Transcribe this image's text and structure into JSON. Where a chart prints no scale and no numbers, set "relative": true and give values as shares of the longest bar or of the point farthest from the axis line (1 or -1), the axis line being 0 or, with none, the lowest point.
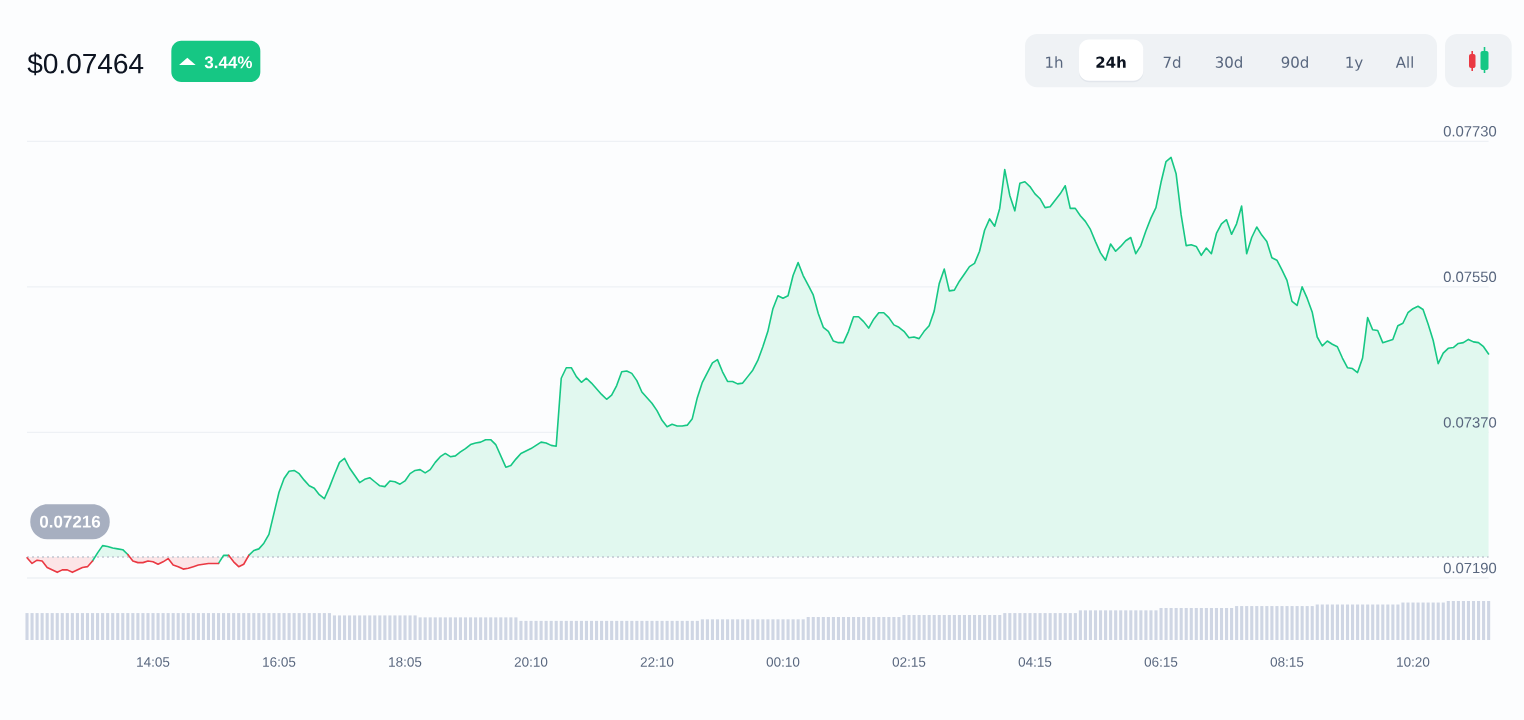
{
  "chart_data": [
    {
      "type": "area",
      "title": "$0.07464",
      "annotations": [
        "3.44%",
        "1h",
        "24h",
        "7d",
        "30d",
        "90d",
        "1y",
        "All"
      ],
      "categories": [
        null,
        null,
        null,
        null,
        null,
        null,
        null,
        null,
        null,
        null,
        null,
        null,
        null,
        null,
        null,
        null,
        null,
        null,
        null,
        null,
        null,
        null,
        null,
        null,
        null,
        "14:05",
        null,
        null,
        null,
        null,
        null,
        null,
        null,
        null,
        null,
        null,
        null,
        null,
        null,
        null,
        null,
        null,
        null,
        null,
        null,
        null,
        null,
        null,
        null,
        null,
        "16:05",
        null,
        null,
        null,
        null,
        null,
        null,
        null,
        null,
        null,
        null,
        null,
        null,
        null,
        null,
        null,
        null,
        null,
        null,
        null,
        null,
        null,
        null,
        null,
        null,
        "18:05",
        null,
        null,
        null,
        null,
        null,
        null,
        null,
        null,
        null,
        null,
        null,
        null,
        null,
        null,
        null,
        null,
        null,
        null,
        null,
        null,
        null,
        null,
        null,
        null,
        "20:10",
        null,
        null,
        null,
        null,
        null,
        null,
        null,
        null,
        null,
        null,
        null,
        null,
        null,
        null,
        null,
        null,
        null,
        null,
        null,
        null,
        null,
        null,
        null,
        null,
        "22:10",
        null,
        null,
        null,
        null,
        null,
        null,
        null,
        null,
        null,
        null,
        null,
        null,
        null,
        null,
        null,
        null,
        null,
        null,
        null,
        null,
        null,
        null,
        null,
        null,
        "00:10",
        null,
        null,
        null,
        null,
        null,
        null,
        null,
        null,
        null,
        null,
        null,
        null,
        null,
        null,
        null,
        null,
        null,
        null,
        null,
        null,
        null,
        null,
        null,
        null,
        "02:15",
        null,
        null,
        null,
        null,
        null,
        null,
        null,
        null,
        null,
        null,
        null,
        null,
        null,
        null,
        null,
        null,
        null,
        null,
        null,
        null,
        null,
        null,
        null,
        null,
        "04:15",
        null,
        null,
        null,
        null,
        null,
        null,
        null,
        null,
        null,
        null,
        null,
        null,
        null,
        null,
        null,
        null,
        null,
        null,
        null,
        null,
        null,
        null,
        null,
        null,
        "06:15",
        null,
        null,
        null,
        null,
        null,
        null,
        null,
        null,
        null,
        null,
        null,
        null,
        null,
        null,
        null,
        null,
        null,
        null,
        null,
        null,
        null,
        null,
        null,
        null,
        "08:15",
        null,
        null,
        null,
        null,
        null,
        null,
        null,
        null,
        null,
        null,
        null,
        null,
        null,
        null,
        null,
        null,
        null,
        null,
        null,
        null,
        null,
        null,
        null,
        null,
        "10:20",
        null,
        null,
        null,
        null,
        null,
        null,
        null,
        null,
        null,
        null,
        null,
        null,
        null,
        null,
        null
      ],
      "ylim": [
        0.0719,
        0.0773
      ],
      "yticks": [
        {
          "value": 0.0719,
          "label": "0.07190"
        },
        {
          "value": 0.0737,
          "label": "0.07370"
        },
        {
          "value": 0.0755,
          "label": "0.07550"
        },
        {
          "value": 0.0773,
          "label": "0.07730"
        }
      ],
      "grid": "y",
      "ref_lines": [
        {
          "axis": "y",
          "value": 0.07216,
          "label": "0.07216",
          "color": "#c0c6d1",
          "line_style": "dotted"
        }
      ],
      "series": [
        {
          "color": "#16c784",
          "values": [
            null,
            null,
            null,
            null,
            null,
            null,
            null,
            null,
            null,
            null,
            null,
            null,
            null,
            0.07211,
            0.07221,
            0.0723,
            0.07229,
            0.07227,
            0.07226,
            0.07225,
            0.07219,
            null,
            null,
            null,
            null,
            null,
            null,
            null,
            null,
            null,
            null,
            null,
            null,
            null,
            null,
            null,
            null,
            null,
            0.07208,
            0.07218,
            0.07218,
            null,
            null,
            null,
            0.07218,
            0.07224,
            0.07226,
            0.07233,
            0.07244,
            0.0727,
            0.07296,
            0.07313,
            0.07322,
            0.07323,
            0.07319,
            0.07311,
            0.07304,
            0.07301,
            0.07293,
            0.07288,
            0.07302,
            0.07318,
            0.07333,
            0.07338,
            0.07326,
            0.07317,
            0.07308,
            0.07312,
            0.07314,
            0.07309,
            0.07304,
            0.07303,
            0.0731,
            0.07309,
            0.07306,
            0.0731,
            0.07319,
            0.07323,
            0.07324,
            0.0732,
            0.07324,
            0.07333,
            0.0734,
            0.07344,
            0.0734,
            0.07341,
            0.07346,
            0.0735,
            0.07355,
            0.07357,
            0.07358,
            0.07361,
            0.07361,
            0.07355,
            0.07341,
            0.07327,
            0.07329,
            0.07337,
            0.07344,
            0.07347,
            0.0735,
            0.07354,
            0.07358,
            0.07357,
            0.07354,
            0.07353,
            0.07437,
            0.0745,
            0.0745,
            0.07439,
            0.07432,
            0.07437,
            0.07431,
            0.07424,
            0.07417,
            0.07411,
            0.07416,
            0.07428,
            0.07445,
            0.07446,
            0.07443,
            0.07434,
            0.0742,
            0.07413,
            0.07406,
            0.07397,
            0.07385,
            0.07377,
            0.0738,
            0.07378,
            0.07378,
            0.07379,
            0.07387,
            0.07413,
            0.07432,
            0.07444,
            0.07456,
            0.0746,
            0.07445,
            0.07433,
            0.07433,
            0.0743,
            0.07431,
            0.07439,
            0.07447,
            0.07459,
            0.07476,
            0.07495,
            0.07523,
            0.07539,
            0.07536,
            0.07539,
            0.07564,
            0.0758,
            0.07564,
            0.07552,
            0.0754,
            0.07517,
            0.075,
            0.07495,
            0.07483,
            0.07481,
            0.07481,
            0.07495,
            0.07513,
            0.07513,
            0.07507,
            0.07499,
            0.0751,
            0.07518,
            0.07518,
            0.07512,
            0.07503,
            0.075,
            0.07495,
            0.07487,
            0.07488,
            0.07486,
            0.07495,
            0.07502,
            0.0752,
            0.07554,
            0.07572,
            0.07545,
            0.07546,
            0.07557,
            0.07566,
            0.07575,
            0.07579,
            0.07594,
            0.0762,
            0.07634,
            0.07625,
            0.07647,
            0.07695,
            0.07663,
            0.07644,
            0.07678,
            0.0768,
            0.07674,
            0.07665,
            0.07659,
            0.07648,
            0.07649,
            0.07657,
            0.07665,
            0.07675,
            0.07647,
            0.07647,
            0.07638,
            0.07631,
            0.07621,
            0.07606,
            0.07592,
            0.07583,
            0.07603,
            0.07594,
            0.076,
            0.07607,
            0.07611,
            0.07591,
            0.07601,
            0.07619,
            0.07635,
            0.07648,
            0.07679,
            0.07705,
            0.0771,
            0.0769,
            0.07639,
            0.07601,
            0.07602,
            0.076,
            0.07589,
            0.07598,
            0.07591,
            0.07616,
            0.07628,
            0.07633,
            0.07615,
            0.07628,
            0.0765,
            0.07591,
            0.07611,
            0.07624,
            0.07614,
            0.07606,
            0.07586,
            0.07583,
            0.07571,
            0.07558,
            0.07532,
            0.07527,
            0.0755,
            0.07536,
            0.07519,
            0.07488,
            0.07477,
            0.07483,
            0.07479,
            0.07476,
            0.07462,
            0.0745,
            0.07449,
            0.07444,
            0.07462,
            0.07512,
            0.07497,
            0.07496,
            0.07481,
            0.07483,
            0.07485,
            0.07502,
            0.07505,
            0.07518,
            0.07523,
            0.07526,
            0.07522,
            0.07504,
            0.07484,
            0.07455,
            0.07468,
            0.07474,
            0.07475,
            0.0748,
            0.07481,
            0.07485,
            0.07482,
            0.07481,
            0.07476,
            0.07467
          ]
        },
        {
          "color": "#ea3943",
          "values": [
            0.07215,
            0.07208,
            0.07212,
            0.07211,
            0.07203,
            0.072,
            0.07197,
            0.072,
            0.072,
            0.07197,
            0.072,
            0.07203,
            0.07204,
            0.07211,
            null,
            null,
            null,
            null,
            null,
            null,
            0.07219,
            0.07211,
            0.07209,
            0.07209,
            0.07211,
            0.0721,
            0.07207,
            0.0721,
            0.07214,
            0.07206,
            0.07204,
            0.07201,
            0.07202,
            0.07204,
            0.07206,
            0.07207,
            0.07208,
            0.07208,
            0.07208,
            null,
            0.07218,
            0.0721,
            0.07204,
            0.07207,
            0.07218,
            null,
            null,
            null,
            null,
            null,
            null,
            null,
            null,
            null,
            null,
            null,
            null,
            null,
            null,
            null,
            null,
            null,
            null,
            null,
            null,
            null,
            null,
            null,
            null,
            null,
            null,
            null,
            null,
            null,
            null,
            null,
            null,
            null,
            null,
            null,
            null,
            null,
            null,
            null,
            null,
            null,
            null,
            null,
            null,
            null,
            null,
            null,
            null,
            null,
            null,
            null,
            null,
            null,
            null,
            null,
            null,
            null,
            null,
            null,
            null,
            null,
            null,
            null,
            null,
            null,
            null,
            null,
            null,
            null,
            null,
            null,
            null,
            null,
            null,
            null,
            null,
            null,
            null,
            null,
            null,
            null,
            null,
            null,
            null,
            null,
            null,
            null,
            null,
            null,
            null,
            null,
            null,
            null,
            null,
            null,
            null,
            null,
            null,
            null,
            null,
            null,
            null,
            null,
            null,
            null,
            null,
            null,
            null,
            null,
            null,
            null,
            null,
            null,
            null,
            null,
            null,
            null,
            null,
            null,
            null,
            null,
            null,
            null,
            null,
            null,
            null,
            null,
            null,
            null,
            null,
            null,
            null,
            null,
            null,
            null,
            null,
            null,
            null,
            null,
            null,
            null,
            null,
            null,
            null,
            null,
            null,
            null,
            null,
            null,
            null,
            null,
            null,
            null,
            null,
            null,
            null,
            null,
            null,
            null,
            null,
            null,
            null,
            null,
            null,
            null,
            null,
            null,
            null,
            null,
            null,
            null,
            null,
            null,
            null,
            null,
            null,
            null,
            null,
            null,
            null,
            null,
            null,
            null,
            null,
            null,
            null,
            null,
            null,
            null,
            null,
            null,
            null,
            null,
            null,
            null,
            null,
            null,
            null,
            null,
            null,
            null,
            null,
            null,
            null,
            null,
            null,
            null,
            null,
            null,
            null,
            null,
            null,
            null,
            null,
            null,
            null,
            null,
            null,
            null,
            null,
            null,
            null,
            null,
            null,
            null,
            null,
            null,
            null,
            null,
            null,
            null,
            null,
            null,
            null,
            null,
            null,
            null,
            null,
            null,
            null,
            null,
            null,
            null,
            null,
            null,
            null
          ]
        }
      ]
    },
    {
      "type": "bar",
      "relative": true,
      "color": "#cfd6e4",
      "categories": [
        null,
        null,
        null,
        null,
        null,
        null,
        null,
        null,
        null,
        null,
        null,
        null,
        null,
        null,
        null,
        null,
        null,
        null,
        null,
        null,
        null,
        null,
        null,
        null,
        null,
        null,
        null,
        null,
        null,
        null,
        null,
        null,
        null,
        null,
        null,
        null,
        null,
        null,
        null,
        null,
        null,
        null,
        null,
        null,
        null,
        null,
        null,
        null,
        null,
        null,
        null,
        null,
        null,
        null,
        null,
        null,
        null,
        null,
        null,
        null,
        null,
        null,
        null,
        null,
        null,
        null,
        null,
        null,
        null,
        null,
        null,
        null,
        null,
        null,
        null,
        null,
        null,
        null,
        null,
        null,
        null,
        null,
        null,
        null,
        null,
        null,
        null,
        null,
        null,
        null,
        null,
        null,
        null,
        null,
        null,
        null,
        null,
        null,
        null,
        null,
        null,
        null,
        null,
        null,
        null,
        null,
        null,
        null,
        null,
        null,
        null,
        null,
        null,
        null,
        null,
        null,
        null,
        null,
        null,
        null,
        null,
        null,
        null,
        null,
        null,
        null,
        null,
        null,
        null,
        null,
        null,
        null,
        null,
        null,
        null,
        null,
        null,
        null,
        null,
        null,
        null,
        null,
        null,
        null,
        null,
        null,
        null,
        null,
        null,
        null,
        null,
        null,
        null,
        null,
        null,
        null,
        null,
        null,
        null,
        null,
        null,
        null,
        null,
        null,
        null,
        null,
        null,
        null,
        null,
        null,
        null,
        null,
        null,
        null,
        null,
        null,
        null,
        null,
        null,
        null,
        null,
        null,
        null,
        null,
        null,
        null,
        null,
        null,
        null,
        null,
        null,
        null,
        null,
        null,
        null,
        null,
        null,
        null,
        null,
        null,
        null,
        null,
        null,
        null,
        null,
        null,
        null,
        null,
        null,
        null,
        null,
        null,
        null,
        null,
        null,
        null,
        null,
        null,
        null,
        null,
        null,
        null,
        null,
        null,
        null,
        null,
        null,
        null,
        null,
        null,
        null,
        null,
        null,
        null,
        null,
        null,
        null,
        null,
        null,
        null,
        null,
        null,
        null,
        null,
        null,
        null,
        null,
        null,
        null,
        null,
        null,
        null,
        null,
        null,
        null,
        null,
        null,
        null,
        null,
        null,
        null,
        null,
        null,
        null,
        null,
        null,
        null,
        null,
        null,
        null,
        null,
        null,
        null,
        null,
        null,
        null,
        null,
        null,
        null,
        null,
        null,
        null,
        null,
        null,
        null,
        null,
        null,
        null,
        null,
        null,
        null
      ],
      "values": [
        0.69,
        0.69,
        0.69,
        0.69,
        0.69,
        0.69,
        0.69,
        0.69,
        0.69,
        0.69,
        0.69,
        0.69,
        0.69,
        0.69,
        0.69,
        0.69,
        0.69,
        0.69,
        0.69,
        0.69,
        0.69,
        0.69,
        0.69,
        0.69,
        0.69,
        0.69,
        0.69,
        0.69,
        0.69,
        0.69,
        0.69,
        0.69,
        0.69,
        0.69,
        0.69,
        0.69,
        0.69,
        0.69,
        0.69,
        0.69,
        0.69,
        0.69,
        0.69,
        0.69,
        0.69,
        0.69,
        0.69,
        0.69,
        0.69,
        0.69,
        0.69,
        0.69,
        0.69,
        0.69,
        0.69,
        0.69,
        0.69,
        0.69,
        0.69,
        0.69,
        0.69,
        0.63,
        0.63,
        0.63,
        0.63,
        0.63,
        0.63,
        0.63,
        0.63,
        0.63,
        0.63,
        0.63,
        0.63,
        0.63,
        0.63,
        0.63,
        0.63,
        0.63,
        0.58,
        0.58,
        0.58,
        0.58,
        0.58,
        0.58,
        0.58,
        0.58,
        0.58,
        0.58,
        0.58,
        0.58,
        0.58,
        0.58,
        0.58,
        0.58,
        0.58,
        0.58,
        0.58,
        0.58,
        0.49,
        0.49,
        0.49,
        0.49,
        0.49,
        0.49,
        0.49,
        0.49,
        0.49,
        0.49,
        0.49,
        0.49,
        0.49,
        0.49,
        0.49,
        0.49,
        0.49,
        0.49,
        0.49,
        0.49,
        0.49,
        0.49,
        0.49,
        0.49,
        0.49,
        0.49,
        0.49,
        0.49,
        0.49,
        0.49,
        0.49,
        0.49,
        0.49,
        0.49,
        0.49,
        0.49,
        0.53,
        0.53,
        0.53,
        0.53,
        0.53,
        0.53,
        0.53,
        0.53,
        0.53,
        0.53,
        0.53,
        0.53,
        0.53,
        0.53,
        0.53,
        0.53,
        0.53,
        0.53,
        0.53,
        0.53,
        0.53,
        0.59,
        0.59,
        0.59,
        0.59,
        0.59,
        0.59,
        0.59,
        0.59,
        0.59,
        0.59,
        0.59,
        0.59,
        0.59,
        0.59,
        0.59,
        0.59,
        0.59,
        0.59,
        0.59,
        0.64,
        0.64,
        0.64,
        0.64,
        0.64,
        0.64,
        0.64,
        0.64,
        0.64,
        0.64,
        0.64,
        0.64,
        0.64,
        0.64,
        0.64,
        0.64,
        0.64,
        0.64,
        0.64,
        0.64,
        0.69,
        0.69,
        0.69,
        0.69,
        0.69,
        0.69,
        0.69,
        0.69,
        0.69,
        0.69,
        0.69,
        0.69,
        0.69,
        0.69,
        0.69,
        0.76,
        0.76,
        0.76,
        0.76,
        0.76,
        0.76,
        0.76,
        0.76,
        0.76,
        0.76,
        0.76,
        0.76,
        0.76,
        0.76,
        0.76,
        0.76,
        0.82,
        0.82,
        0.82,
        0.82,
        0.82,
        0.82,
        0.82,
        0.82,
        0.82,
        0.82,
        0.82,
        0.82,
        0.82,
        0.82,
        0.82,
        0.87,
        0.87,
        0.87,
        0.87,
        0.87,
        0.87,
        0.87,
        0.87,
        0.87,
        0.87,
        0.87,
        0.87,
        0.87,
        0.87,
        0.87,
        0.87,
        0.91,
        0.91,
        0.91,
        0.91,
        0.91,
        0.91,
        0.91,
        0.91,
        0.91,
        0.91,
        0.91,
        0.91,
        0.91,
        0.91,
        0.91,
        0.91,
        0.91,
        0.96,
        0.96,
        0.96,
        0.96,
        0.96,
        0.96,
        0.96,
        0.96,
        0.96,
        1,
        1,
        1,
        1,
        1,
        1,
        1,
        1,
        1
      ]
    }
  ]
}
